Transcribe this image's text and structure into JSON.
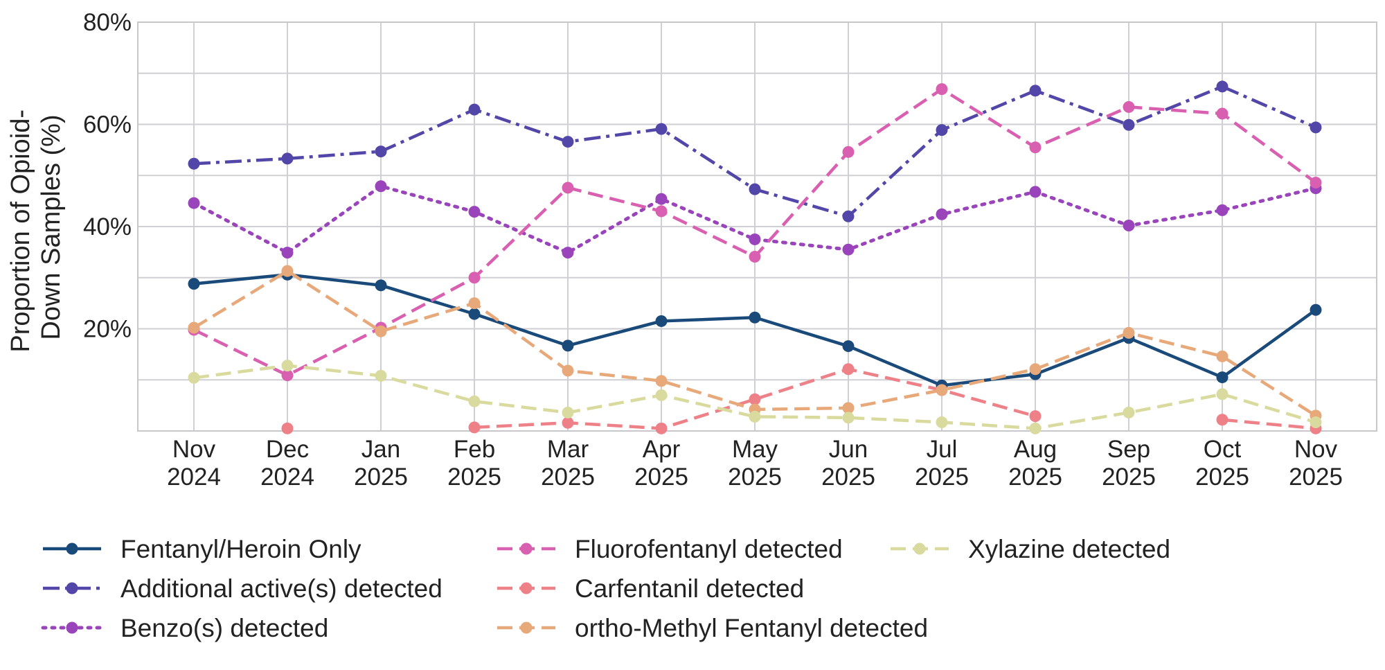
{
  "chart_data": {
    "type": "line",
    "title": "",
    "xlabel": "",
    "ylabel_lines": [
      "Proportion of Opioid-",
      "Down Samples (%)"
    ],
    "ylim": [
      0,
      80
    ],
    "y_ticks": [
      {
        "value": 20,
        "label": "20%"
      },
      {
        "value": 40,
        "label": "40%"
      },
      {
        "value": 60,
        "label": "60%"
      },
      {
        "value": 80,
        "label": "80%"
      }
    ],
    "y_gridlines": [
      10,
      20,
      30,
      40,
      50,
      60,
      70,
      80
    ],
    "categories": [
      [
        "Nov",
        "2024"
      ],
      [
        "Dec",
        "2024"
      ],
      [
        "Jan",
        "2025"
      ],
      [
        "Feb",
        "2025"
      ],
      [
        "Mar",
        "2025"
      ],
      [
        "Apr",
        "2025"
      ],
      [
        "May",
        "2025"
      ],
      [
        "Jun",
        "2025"
      ],
      [
        "Jul",
        "2025"
      ],
      [
        "Aug",
        "2025"
      ],
      [
        "Sep",
        "2025"
      ],
      [
        "Oct",
        "2025"
      ],
      [
        "Nov",
        "2025"
      ]
    ],
    "legend_position": "bottom",
    "series": [
      {
        "name": "Fentanyl/Heroin Only",
        "color": "#1a4a7a",
        "dash": "solid",
        "values": [
          28.8,
          30.6,
          28.5,
          22.9,
          16.7,
          21.5,
          22.2,
          16.6,
          8.9,
          11.1,
          18.2,
          10.5,
          23.7
        ]
      },
      {
        "name": "Additional active(s) detected",
        "color": "#5247a8",
        "dash": "dashdot",
        "values": [
          52.3,
          53.3,
          54.7,
          62.9,
          56.6,
          59.1,
          47.3,
          42.0,
          58.9,
          66.6,
          59.9,
          67.4,
          59.4
        ]
      },
      {
        "name": "Benzo(s) detected",
        "color": "#9944bb",
        "dash": "dotted",
        "values": [
          44.6,
          34.9,
          47.9,
          42.9,
          34.9,
          45.4,
          37.5,
          35.5,
          42.4,
          46.8,
          40.2,
          43.2,
          47.5
        ]
      },
      {
        "name": "Fluorofentanyl detected",
        "color": "#d95fb0",
        "dash": "dashed",
        "values": [
          19.8,
          10.9,
          20.2,
          30.0,
          47.6,
          43.0,
          34.1,
          54.6,
          66.9,
          55.5,
          63.4,
          62.1,
          48.6
        ]
      },
      {
        "name": "Carfentanil detected",
        "color": "#ee8088",
        "dash": "dashed",
        "values": [
          null,
          0.5,
          null,
          0.7,
          1.6,
          0.5,
          6.2,
          12.1,
          8.0,
          2.9,
          null,
          2.2,
          0.5
        ]
      },
      {
        "name": "ortho-Methyl Fentanyl detected",
        "color": "#e8a97a",
        "dash": "dashed",
        "values": [
          20.2,
          31.3,
          19.5,
          25.0,
          11.8,
          9.8,
          4.2,
          4.5,
          8.0,
          12.1,
          19.2,
          14.6,
          3.0
        ]
      },
      {
        "name": "Xylazine detected",
        "color": "#d9db9e",
        "dash": "dashed",
        "values": [
          10.4,
          12.8,
          10.8,
          5.8,
          3.6,
          7.0,
          2.8,
          2.6,
          1.7,
          0.5,
          3.6,
          7.2,
          1.7
        ]
      }
    ]
  }
}
